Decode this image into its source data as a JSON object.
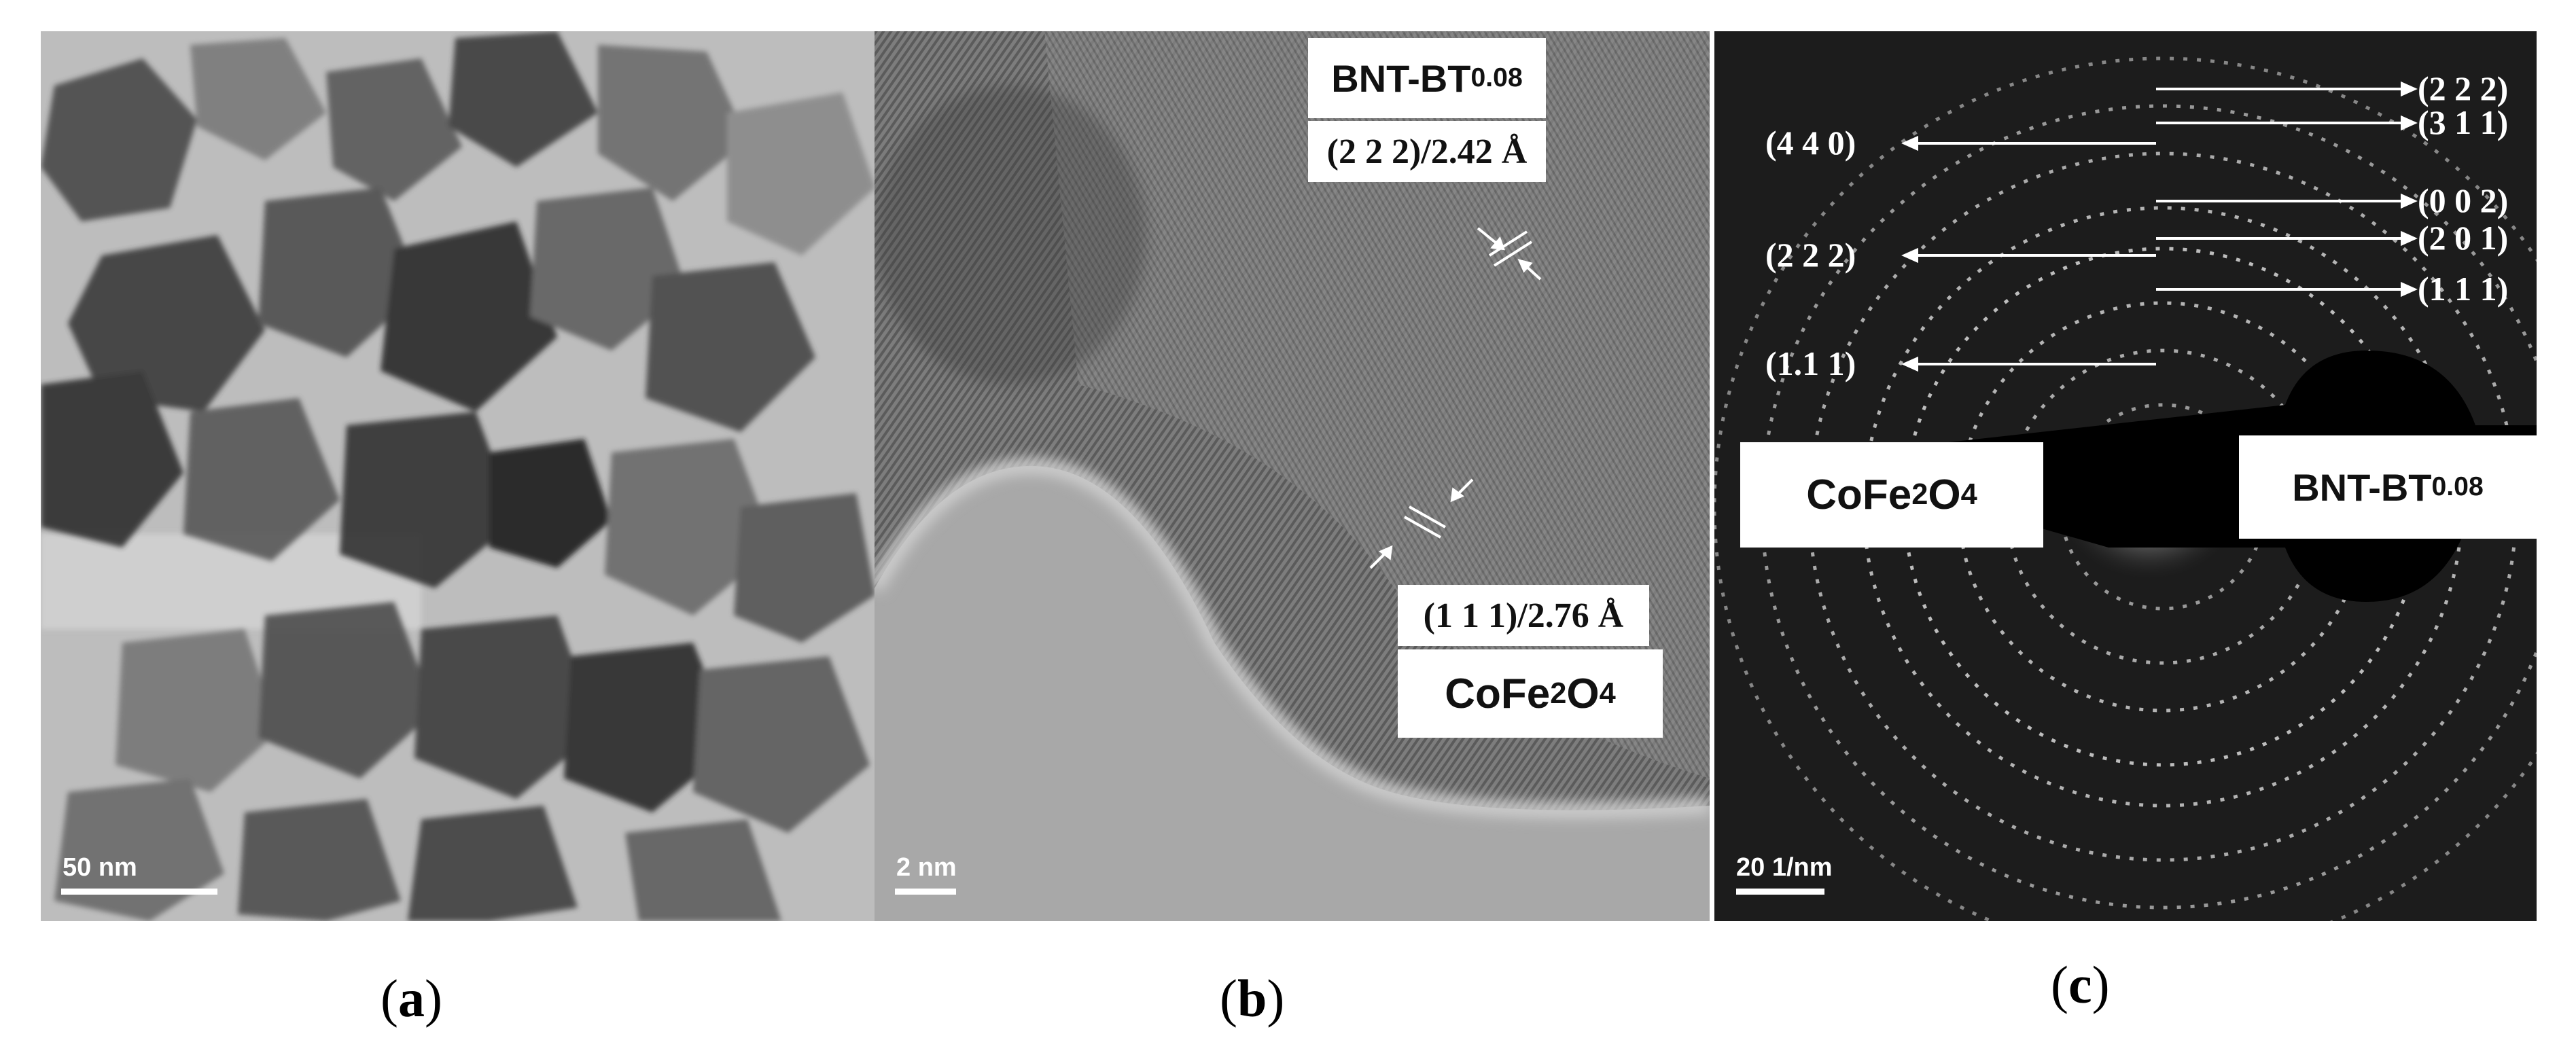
{
  "panel_a": {
    "scale_label": "50 nm"
  },
  "panel_b": {
    "scale_label": "2 nm",
    "bnt_label": "BNT-BT",
    "bnt_sub": "0.08",
    "plane_top": "(2 2 2)/2.42 Å",
    "plane_bottom": "(1 1 1)/2.76 Å",
    "ferrite_label_a": "CoFe",
    "ferrite_sub_a": "2",
    "ferrite_label_b": "O",
    "ferrite_sub_b": "4"
  },
  "panel_c": {
    "scale_label": "20 1/nm",
    "bnt_label": "BNT-BT",
    "bnt_sub": "0.08",
    "ferrite_label_a": "CoFe",
    "ferrite_sub_a": "2",
    "ferrite_label_b": "O",
    "ferrite_sub_b": "4",
    "right_rings": [
      "(2 2 2)",
      "(3 1 1)",
      "(0 0 2)",
      "(2 0 1)",
      "(1 1 1)"
    ],
    "left_rings": [
      "(4 4 0)",
      "(2 2 2)",
      "(1.1 1)"
    ]
  },
  "captions": {
    "a": "a",
    "b": "b",
    "c": "c"
  }
}
